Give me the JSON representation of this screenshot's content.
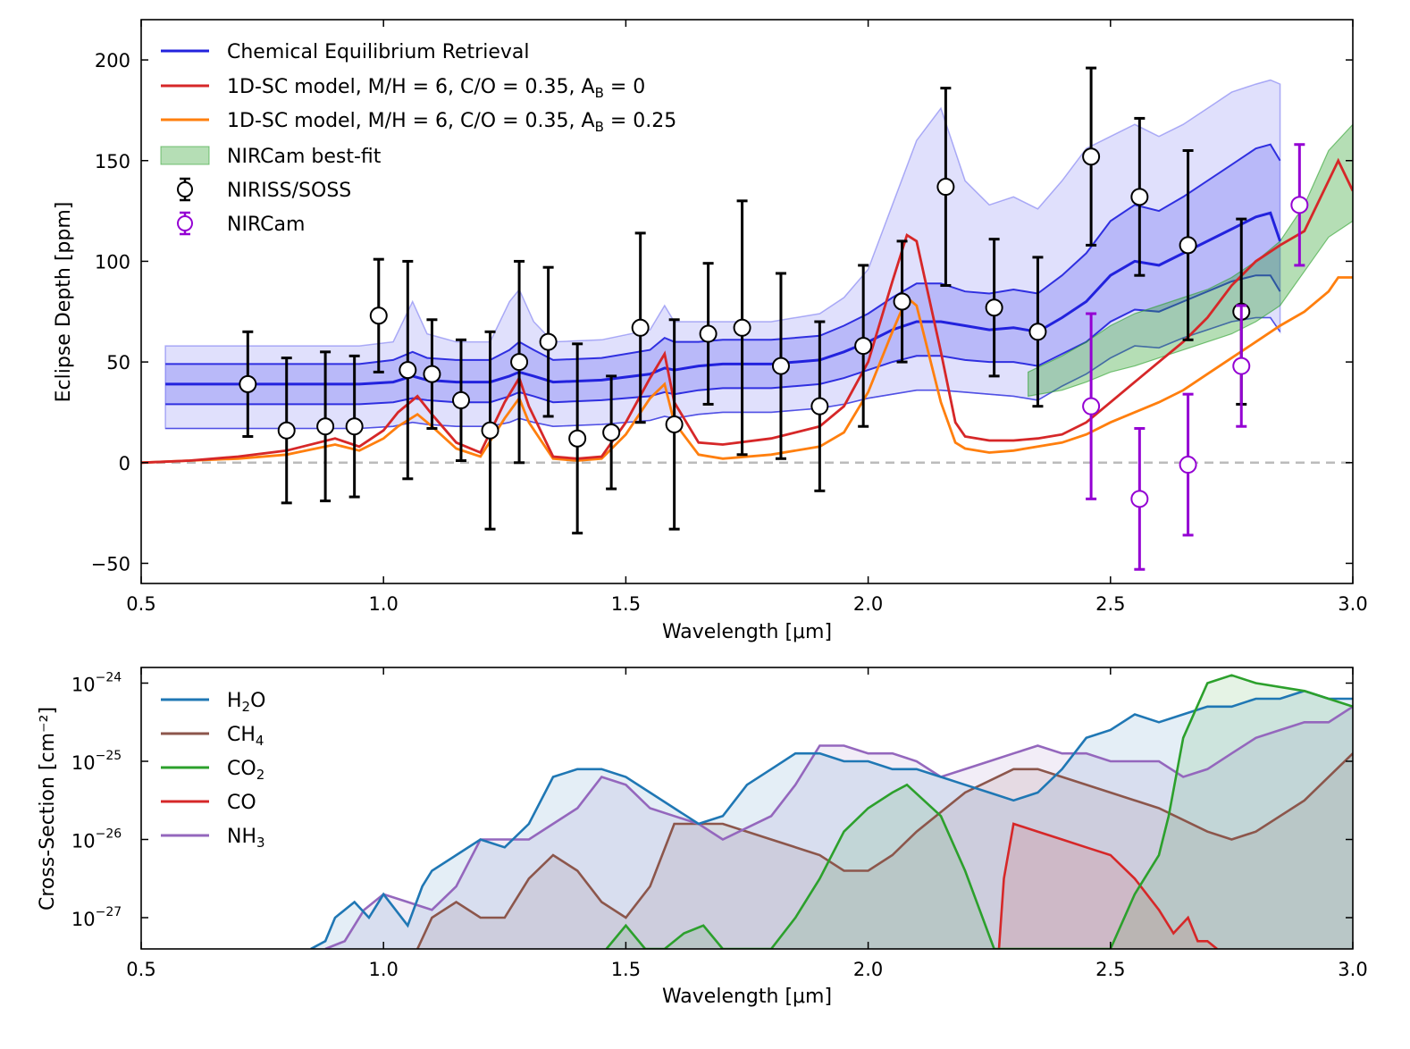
{
  "chart_data": [
    {
      "type": "line",
      "name": "eclipse-spectrum",
      "xlabel": "Wavelength [μm]",
      "ylabel": "Eclipse Depth [ppm]",
      "xlim": [
        0.5,
        3.0
      ],
      "ylim": [
        -60,
        220
      ],
      "xticks": [
        0.5,
        1.0,
        1.5,
        2.0,
        2.5,
        3.0
      ],
      "xtick_labels": [
        "0.5",
        "1.0",
        "1.5",
        "2.0",
        "2.5",
        "3.0"
      ],
      "yticks": [
        -50,
        0,
        50,
        100,
        150,
        200
      ],
      "ytick_labels": [
        "−50",
        "0",
        "50",
        "100",
        "150",
        "200"
      ],
      "legend_position": "top-left",
      "legend": [
        {
          "key": "retrieval",
          "label": "Chemical Equilibrium Retrieval",
          "color": "#2222dd"
        },
        {
          "key": "red_model",
          "label": "1D-SC model, M/H = 6, C/O = 0.35, A",
          "sub": "B",
          "tail": " = 0",
          "color": "#d62728"
        },
        {
          "key": "orange_model",
          "label": "1D-SC model, M/H = 6, C/O = 0.35, A",
          "sub": "B",
          "tail": " = 0.25",
          "color": "#ff7f0e"
        },
        {
          "key": "nircam_fit",
          "label": "NIRCam best-fit",
          "color": "#2ca02c"
        },
        {
          "key": "soss",
          "label": "NIRISS/SOSS",
          "color": "#000000"
        },
        {
          "key": "nircam",
          "label": "NIRCam",
          "color": "#9400d3"
        }
      ],
      "retrieval": {
        "x": [
          0.55,
          0.95,
          1.02,
          1.06,
          1.09,
          1.15,
          1.22,
          1.26,
          1.28,
          1.31,
          1.35,
          1.45,
          1.55,
          1.58,
          1.6,
          1.65,
          1.7,
          1.8,
          1.9,
          1.95,
          2.0,
          2.05,
          2.1,
          2.15,
          2.2,
          2.25,
          2.3,
          2.35,
          2.4,
          2.45,
          2.5,
          2.55,
          2.6,
          2.65,
          2.7,
          2.75,
          2.8,
          2.83,
          2.85
        ],
        "median": [
          39,
          39,
          40,
          43,
          41,
          40,
          40,
          43,
          45,
          43,
          40,
          41,
          44,
          47,
          46,
          48,
          49,
          49,
          51,
          55,
          60,
          66,
          70,
          70,
          68,
          66,
          67,
          65,
          72,
          80,
          93,
          100,
          98,
          104,
          110,
          116,
          122,
          124,
          110
        ],
        "inner_lo": [
          29,
          29,
          30,
          32,
          31,
          30,
          30,
          33,
          35,
          33,
          30,
          31,
          33,
          35,
          34,
          36,
          37,
          37,
          39,
          42,
          46,
          50,
          53,
          53,
          51,
          50,
          50,
          48,
          54,
          60,
          70,
          76,
          75,
          80,
          85,
          90,
          93,
          93,
          85
        ],
        "inner_hi": [
          49,
          49,
          51,
          55,
          52,
          51,
          51,
          56,
          60,
          56,
          51,
          52,
          56,
          62,
          60,
          60,
          61,
          61,
          63,
          68,
          74,
          82,
          89,
          89,
          85,
          84,
          86,
          84,
          93,
          104,
          120,
          128,
          125,
          132,
          140,
          148,
          156,
          158,
          150
        ],
        "outer_lo": [
          17,
          17,
          18,
          20,
          19,
          18,
          18,
          20,
          22,
          20,
          18,
          19,
          21,
          23,
          22,
          24,
          25,
          25,
          27,
          29,
          32,
          34,
          36,
          36,
          35,
          34,
          33,
          31,
          38,
          44,
          52,
          58,
          57,
          62,
          66,
          70,
          72,
          72,
          65
        ],
        "outer_hi": [
          58,
          58,
          60,
          80,
          64,
          60,
          60,
          80,
          86,
          70,
          60,
          61,
          66,
          78,
          70,
          70,
          70,
          70,
          74,
          82,
          96,
          128,
          160,
          176,
          140,
          128,
          132,
          126,
          140,
          156,
          162,
          168,
          162,
          168,
          176,
          184,
          188,
          190,
          188
        ]
      },
      "red_model": {
        "x": [
          0.5,
          0.6,
          0.7,
          0.8,
          0.9,
          0.95,
          1.0,
          1.03,
          1.07,
          1.1,
          1.15,
          1.2,
          1.25,
          1.28,
          1.3,
          1.35,
          1.4,
          1.45,
          1.5,
          1.55,
          1.58,
          1.6,
          1.65,
          1.7,
          1.8,
          1.9,
          1.95,
          2.0,
          2.05,
          2.08,
          2.1,
          2.15,
          2.18,
          2.2,
          2.25,
          2.3,
          2.35,
          2.4,
          2.45,
          2.5,
          2.55,
          2.6,
          2.65,
          2.7,
          2.75,
          2.8,
          2.85,
          2.9,
          2.95,
          2.97,
          3.0
        ],
        "y": [
          0,
          1,
          3,
          6,
          12,
          8,
          16,
          25,
          33,
          24,
          10,
          5,
          30,
          42,
          28,
          3,
          2,
          3,
          20,
          42,
          54,
          30,
          10,
          9,
          12,
          18,
          28,
          50,
          90,
          113,
          110,
          55,
          20,
          13,
          11,
          11,
          12,
          14,
          20,
          30,
          40,
          50,
          60,
          72,
          88,
          100,
          108,
          115,
          140,
          150,
          135
        ]
      },
      "orange_model": {
        "x": [
          0.5,
          0.6,
          0.7,
          0.8,
          0.9,
          0.95,
          1.0,
          1.03,
          1.07,
          1.1,
          1.15,
          1.2,
          1.25,
          1.28,
          1.3,
          1.35,
          1.4,
          1.45,
          1.5,
          1.55,
          1.58,
          1.6,
          1.65,
          1.7,
          1.8,
          1.9,
          1.95,
          2.0,
          2.05,
          2.08,
          2.1,
          2.15,
          2.18,
          2.2,
          2.25,
          2.3,
          2.35,
          2.4,
          2.45,
          2.5,
          2.55,
          2.6,
          2.65,
          2.7,
          2.75,
          2.8,
          2.85,
          2.9,
          2.95,
          2.97,
          3.0
        ],
        "y": [
          0,
          1,
          2,
          4,
          9,
          6,
          12,
          18,
          24,
          18,
          7,
          3,
          22,
          32,
          20,
          2,
          1,
          2,
          14,
          32,
          39,
          20,
          4,
          2,
          4,
          8,
          15,
          35,
          65,
          82,
          78,
          30,
          10,
          7,
          5,
          6,
          8,
          10,
          14,
          20,
          25,
          30,
          36,
          44,
          52,
          60,
          68,
          75,
          85,
          92,
          92
        ]
      },
      "nircam_fit": {
        "x": [
          2.33,
          2.4,
          2.45,
          2.5,
          2.55,
          2.6,
          2.65,
          2.7,
          2.75,
          2.8,
          2.85,
          2.9,
          2.95,
          3.0
        ],
        "lo": [
          33,
          36,
          40,
          45,
          48,
          52,
          56,
          60,
          64,
          70,
          78,
          95,
          112,
          120
        ],
        "hi": [
          45,
          53,
          60,
          68,
          74,
          78,
          82,
          86,
          92,
          100,
          110,
          128,
          155,
          168
        ]
      },
      "soss_points": [
        {
          "x": 0.72,
          "y": 39,
          "err": 26
        },
        {
          "x": 0.8,
          "y": 16,
          "err": 36
        },
        {
          "x": 0.88,
          "y": 18,
          "err": 37
        },
        {
          "x": 0.94,
          "y": 18,
          "err": 35
        },
        {
          "x": 0.99,
          "y": 73,
          "err": 28
        },
        {
          "x": 1.05,
          "y": 46,
          "err": 54
        },
        {
          "x": 1.1,
          "y": 44,
          "err": 27
        },
        {
          "x": 1.16,
          "y": 31,
          "err": 30
        },
        {
          "x": 1.22,
          "y": 16,
          "err": 49
        },
        {
          "x": 1.28,
          "y": 50,
          "err": 50
        },
        {
          "x": 1.34,
          "y": 60,
          "err": 37
        },
        {
          "x": 1.4,
          "y": 12,
          "err": 47
        },
        {
          "x": 1.47,
          "y": 15,
          "err": 28
        },
        {
          "x": 1.53,
          "y": 67,
          "err": 47
        },
        {
          "x": 1.6,
          "y": 19,
          "err": 52
        },
        {
          "x": 1.67,
          "y": 64,
          "err": 35
        },
        {
          "x": 1.74,
          "y": 67,
          "err": 63
        },
        {
          "x": 1.82,
          "y": 48,
          "err": 46
        },
        {
          "x": 1.9,
          "y": 28,
          "err": 42
        },
        {
          "x": 1.99,
          "y": 58,
          "err": 40
        },
        {
          "x": 2.07,
          "y": 80,
          "err": 30
        },
        {
          "x": 2.16,
          "y": 137,
          "err": 49
        },
        {
          "x": 2.26,
          "y": 77,
          "err": 34
        },
        {
          "x": 2.35,
          "y": 65,
          "err": 37
        },
        {
          "x": 2.46,
          "y": 152,
          "err": 44
        },
        {
          "x": 2.56,
          "y": 132,
          "err": 39
        },
        {
          "x": 2.66,
          "y": 108,
          "err": 47
        },
        {
          "x": 2.77,
          "y": 75,
          "err": 46
        }
      ],
      "nircam_points": [
        {
          "x": 2.46,
          "y": 28,
          "err": 46
        },
        {
          "x": 2.56,
          "y": -18,
          "err": 35
        },
        {
          "x": 2.66,
          "y": -1,
          "err": 35
        },
        {
          "x": 2.77,
          "y": 48,
          "err": 30
        },
        {
          "x": 2.89,
          "y": 128,
          "err": 30
        }
      ]
    },
    {
      "type": "area",
      "name": "cross-section",
      "xlabel": "Wavelength [μm]",
      "ylabel": "Cross-Section [cm⁻²]",
      "xlim": [
        0.5,
        3.0
      ],
      "ylim_log10": [
        -27.4,
        -23.8
      ],
      "yscale": "log",
      "xticks": [
        0.5,
        1.0,
        1.5,
        2.0,
        2.5,
        3.0
      ],
      "xtick_labels": [
        "0.5",
        "1.0",
        "1.5",
        "2.0",
        "2.5",
        "3.0"
      ],
      "yticks_log10": [
        -24,
        -25,
        -26,
        -27
      ],
      "ytick_base": "10",
      "ytick_exponents": [
        "−24",
        "−25",
        "−26",
        "−27"
      ],
      "legend_position": "top-left",
      "series": [
        {
          "key": "h2o",
          "label": "H",
          "sub": "2",
          "tail": "O",
          "color": "#1f77b4",
          "x": [
            0.85,
            0.88,
            0.9,
            0.94,
            0.97,
            1.0,
            1.05,
            1.08,
            1.1,
            1.15,
            1.2,
            1.25,
            1.3,
            1.35,
            1.4,
            1.45,
            1.5,
            1.55,
            1.6,
            1.65,
            1.7,
            1.75,
            1.8,
            1.85,
            1.9,
            1.95,
            2.0,
            2.05,
            2.1,
            2.15,
            2.2,
            2.25,
            2.3,
            2.35,
            2.4,
            2.45,
            2.5,
            2.55,
            2.6,
            2.65,
            2.7,
            2.75,
            2.8,
            2.85,
            2.9,
            2.95,
            3.0
          ],
          "log10": [
            -27.4,
            -27.3,
            -27.0,
            -26.8,
            -27.0,
            -26.7,
            -27.1,
            -26.6,
            -26.4,
            -26.2,
            -26.0,
            -26.1,
            -25.8,
            -25.2,
            -25.1,
            -25.1,
            -25.2,
            -25.4,
            -25.6,
            -25.8,
            -25.7,
            -25.3,
            -25.1,
            -24.9,
            -24.9,
            -25.0,
            -25.0,
            -25.1,
            -25.1,
            -25.2,
            -25.3,
            -25.4,
            -25.5,
            -25.4,
            -25.1,
            -24.7,
            -24.6,
            -24.4,
            -24.5,
            -24.4,
            -24.3,
            -24.3,
            -24.2,
            -24.2,
            -24.1,
            -24.2,
            -24.2
          ]
        },
        {
          "key": "ch4",
          "label": "CH",
          "sub": "4",
          "tail": "",
          "color": "#8c564b",
          "x": [
            1.07,
            1.1,
            1.15,
            1.2,
            1.25,
            1.3,
            1.35,
            1.4,
            1.45,
            1.5,
            1.55,
            1.6,
            1.65,
            1.7,
            1.8,
            1.9,
            1.95,
            2.0,
            2.05,
            2.1,
            2.2,
            2.3,
            2.35,
            2.4,
            2.5,
            2.6,
            2.7,
            2.75,
            2.8,
            2.9,
            3.0
          ],
          "log10": [
            -27.4,
            -27.0,
            -26.8,
            -27.0,
            -27.0,
            -26.5,
            -26.2,
            -26.4,
            -26.8,
            -27.0,
            -26.6,
            -25.8,
            -25.8,
            -25.8,
            -26.0,
            -26.2,
            -26.4,
            -26.4,
            -26.2,
            -25.9,
            -25.4,
            -25.1,
            -25.1,
            -25.2,
            -25.4,
            -25.6,
            -25.9,
            -26.0,
            -25.9,
            -25.5,
            -24.9
          ]
        },
        {
          "key": "co2",
          "label": "CO",
          "sub": "2",
          "tail": "",
          "color": "#2ca02c",
          "x": [
            1.46,
            1.5,
            1.54,
            1.58,
            1.62,
            1.66,
            1.7,
            1.8,
            1.85,
            1.9,
            1.95,
            2.0,
            2.05,
            2.08,
            2.15,
            2.2,
            2.26,
            2.5,
            2.55,
            2.6,
            2.62,
            2.65,
            2.7,
            2.75,
            2.8,
            2.9,
            3.0
          ],
          "log10": [
            -27.4,
            -27.1,
            -27.4,
            -27.4,
            -27.2,
            -27.1,
            -27.4,
            -27.4,
            -27.0,
            -26.5,
            -25.9,
            -25.6,
            -25.4,
            -25.3,
            -25.7,
            -26.4,
            -27.4,
            -27.4,
            -26.7,
            -26.2,
            -25.7,
            -24.7,
            -24.0,
            -23.9,
            -24.0,
            -24.1,
            -24.3
          ]
        },
        {
          "key": "co",
          "label": "CO",
          "sub": "",
          "tail": "",
          "color": "#d62728",
          "x": [
            2.27,
            2.28,
            2.3,
            2.35,
            2.4,
            2.45,
            2.5,
            2.55,
            2.6,
            2.63,
            2.66,
            2.68,
            2.7,
            2.72
          ],
          "log10": [
            -27.4,
            -26.5,
            -25.8,
            -25.9,
            -26.0,
            -26.1,
            -26.2,
            -26.5,
            -26.9,
            -27.2,
            -27.0,
            -27.3,
            -27.3,
            -27.4
          ]
        },
        {
          "key": "nh3",
          "label": "NH",
          "sub": "3",
          "tail": "",
          "color": "#9467bd",
          "x": [
            0.88,
            0.92,
            0.96,
            1.0,
            1.05,
            1.1,
            1.15,
            1.2,
            1.25,
            1.3,
            1.35,
            1.4,
            1.45,
            1.5,
            1.55,
            1.6,
            1.65,
            1.7,
            1.8,
            1.85,
            1.9,
            1.95,
            2.0,
            2.05,
            2.1,
            2.15,
            2.2,
            2.25,
            2.3,
            2.35,
            2.4,
            2.45,
            2.5,
            2.55,
            2.6,
            2.65,
            2.7,
            2.75,
            2.8,
            2.85,
            2.9,
            2.95,
            3.0
          ],
          "log10": [
            -27.4,
            -27.3,
            -26.9,
            -26.7,
            -26.8,
            -26.9,
            -26.6,
            -26.0,
            -26.0,
            -26.0,
            -25.8,
            -25.6,
            -25.2,
            -25.3,
            -25.6,
            -25.7,
            -25.8,
            -26.0,
            -25.7,
            -25.3,
            -24.8,
            -24.8,
            -24.9,
            -24.9,
            -25.0,
            -25.2,
            -25.1,
            -25.0,
            -24.9,
            -24.8,
            -24.9,
            -24.9,
            -25.0,
            -25.0,
            -25.0,
            -25.2,
            -25.1,
            -24.9,
            -24.7,
            -24.6,
            -24.5,
            -24.5,
            -24.3
          ]
        }
      ]
    }
  ]
}
